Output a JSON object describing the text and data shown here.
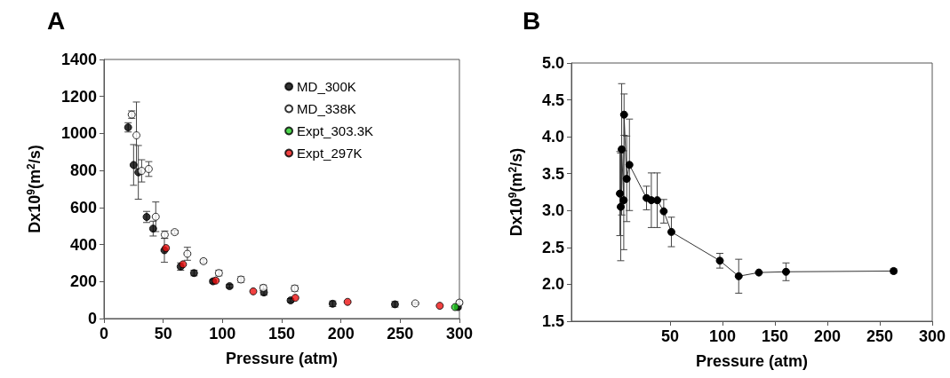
{
  "chart_data": [
    {
      "type": "scatter",
      "title": "A",
      "xlabel": "Pressure (atm)",
      "ylabel": "Dx10$^{9}$(m$^{2}$/s)",
      "xlim": [
        0,
        300
      ],
      "xticks": [
        0,
        50,
        100,
        150,
        200,
        250,
        300
      ],
      "ylim": [
        0,
        1400
      ],
      "yticks": [
        0,
        200,
        400,
        600,
        800,
        1000,
        1200,
        1400
      ],
      "legend": "top right",
      "marker": "circle",
      "grid": false,
      "series": [
        {
          "name": "MD_300K",
          "color": "#000000",
          "x": [
            20.4,
            25,
            29,
            36,
            41.5,
            51,
            64.7,
            76,
            92,
            106,
            135,
            157.5,
            193,
            245.6,
            298.7
          ],
          "values": [
            1033,
            830,
            790,
            549,
            486,
            369,
            281,
            246,
            201,
            175,
            141,
            98,
            80,
            77,
            62
          ],
          "errors": [
            25,
            110,
            145,
            30,
            40,
            65,
            20,
            15,
            10,
            10,
            15,
            10,
            15,
            15,
            10
          ]
        },
        {
          "name": "MD_338K",
          "color": "#ffffff",
          "x": [
            23.4,
            27.4,
            31.8,
            37.8,
            43.7,
            51.3,
            59.7,
            70.4,
            84,
            97,
            115.6,
            134.5,
            161,
            262.7,
            300
          ],
          "values": [
            1102,
            990,
            798,
            808,
            550,
            453,
            467,
            350,
            310,
            246,
            211,
            166,
            163,
            82,
            86
          ],
          "errors": [
            20,
            180,
            60,
            40,
            80,
            20,
            10,
            35,
            10,
            15,
            15,
            15,
            15,
            5,
            10
          ]
        },
        {
          "name": "Expt_303.3K",
          "color": "#22cc22",
          "x": [
            296.3
          ],
          "values": [
            62
          ]
        },
        {
          "name": "Expt_297K",
          "color": "#ee1111",
          "x": [
            52.3,
            66.7,
            94.3,
            126,
            161.5,
            205.6,
            283.4
          ],
          "values": [
            381,
            293,
            205,
            147,
            112,
            90,
            69
          ]
        }
      ]
    },
    {
      "type": "line",
      "title": "B",
      "xlabel": "Pressure (atm)",
      "ylabel": "Dx10$^{9}$(m$^{2}$/s)",
      "xlim": [
        -44,
        300
      ],
      "xticks": [
        50,
        100,
        150,
        200,
        250,
        300
      ],
      "ylim": [
        1.5,
        5.0
      ],
      "yticks": [
        {
          "value": 1.5,
          "label": "1.5"
        },
        {
          "value": 2,
          "label": "2.0"
        },
        {
          "value": 2.5,
          "label": "2.5"
        },
        {
          "value": 3,
          "label": "3.0"
        },
        {
          "value": 3.5,
          "label": "3.5"
        },
        {
          "value": 4,
          "label": "4.0"
        },
        {
          "value": 4.5,
          "label": "4.5"
        },
        {
          "value": 5,
          "label": "5.0"
        }
      ],
      "legend": false,
      "marker": "circle",
      "line_style": "solid",
      "grid": false,
      "series": [
        {
          "color": "#000000",
          "x": [
            2.2,
            3.0,
            3.9,
            5.9,
            6.2,
            8.7,
            11.3,
            27.6,
            32.2,
            37.8,
            44,
            51.3,
            97.5,
            115.5,
            134.7,
            160.6,
            263.2
          ],
          "values": [
            3.23,
            3.05,
            3.83,
            3.14,
            4.3,
            3.43,
            3.62,
            3.17,
            3.14,
            3.14,
            2.99,
            2.71,
            2.32,
            2.11,
            2.16,
            2.17,
            2.18
          ],
          "errors": [
            0.57,
            0.73,
            0.89,
            0.67,
            0.28,
            0.58,
            0.62,
            0.16,
            0.37,
            0.37,
            0.16,
            0.2,
            0.1,
            0.23,
            null,
            0.12,
            0.03
          ]
        }
      ]
    }
  ]
}
